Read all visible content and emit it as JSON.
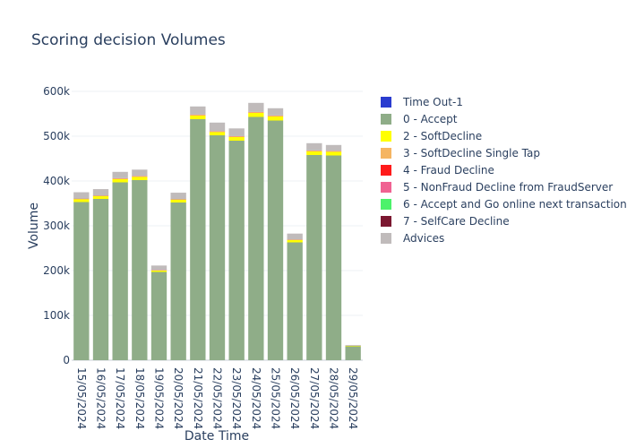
{
  "chart_data": {
    "type": "bar",
    "stacked": true,
    "title": "Scoring decision Volumes",
    "xlabel": "Date Time",
    "ylabel": "Volume",
    "ylim": [
      0,
      600000
    ],
    "yticks": [
      0,
      100000,
      200000,
      300000,
      400000,
      500000,
      600000
    ],
    "ytick_labels": [
      "0",
      "100k",
      "200k",
      "300k",
      "400k",
      "500k",
      "600k"
    ],
    "grid": true,
    "legend_position": "right",
    "categories": [
      "15/05/2024",
      "16/05/2024",
      "17/05/2024",
      "18/05/2024",
      "19/05/2024",
      "20/05/2024",
      "21/05/2024",
      "22/05/2024",
      "23/05/2024",
      "24/05/2024",
      "25/05/2024",
      "26/05/2024",
      "27/05/2024",
      "28/05/2024",
      "29/05/2024"
    ],
    "series": [
      {
        "name": "Time Out-1",
        "color": "#2a3ccf",
        "values": [
          0,
          0,
          0,
          0,
          0,
          0,
          0,
          0,
          0,
          0,
          0,
          0,
          0,
          0,
          0
        ]
      },
      {
        "name": "0 - Accept",
        "color": "#8fad88",
        "values": [
          353000,
          360000,
          397000,
          402000,
          197000,
          352000,
          538000,
          502000,
          490000,
          543000,
          535000,
          263000,
          458000,
          457000,
          31000
        ]
      },
      {
        "name": "2 - SoftDecline",
        "color": "#ffff00",
        "values": [
          6000,
          6000,
          7000,
          7000,
          3000,
          6000,
          8000,
          7000,
          8000,
          9000,
          9000,
          5000,
          8000,
          8000,
          1000
        ]
      },
      {
        "name": "3 - SoftDecline Single Tap",
        "color": "#f5b562",
        "values": [
          1000,
          1000,
          1500,
          1500,
          700,
          1000,
          1500,
          1500,
          1500,
          1500,
          1500,
          1000,
          1500,
          1500,
          200
        ]
      },
      {
        "name": "4 - Fraud Decline",
        "color": "#ff1a1a",
        "values": [
          300,
          300,
          300,
          300,
          200,
          300,
          300,
          300,
          300,
          300,
          300,
          200,
          300,
          300,
          50
        ]
      },
      {
        "name": "5 - NonFraud Decline from FraudServer",
        "color": "#f06292",
        "values": [
          300,
          300,
          300,
          300,
          200,
          300,
          300,
          300,
          300,
          300,
          300,
          200,
          300,
          300,
          50
        ]
      },
      {
        "name": "6 -  Accept and Go online next transaction",
        "color": "#4cf26b",
        "values": [
          200,
          200,
          200,
          200,
          100,
          200,
          200,
          200,
          200,
          200,
          200,
          100,
          200,
          200,
          50
        ]
      },
      {
        "name": "7 - SelfCare Decline",
        "color": "#7b1730",
        "values": [
          100,
          100,
          100,
          100,
          100,
          100,
          100,
          100,
          100,
          100,
          100,
          100,
          100,
          100,
          20
        ]
      },
      {
        "name": "Advices",
        "color": "#c0bbbb",
        "values": [
          14000,
          14000,
          14000,
          14000,
          10000,
          14000,
          18000,
          19000,
          17000,
          20000,
          16000,
          13000,
          16000,
          13000,
          1500
        ]
      }
    ]
  }
}
